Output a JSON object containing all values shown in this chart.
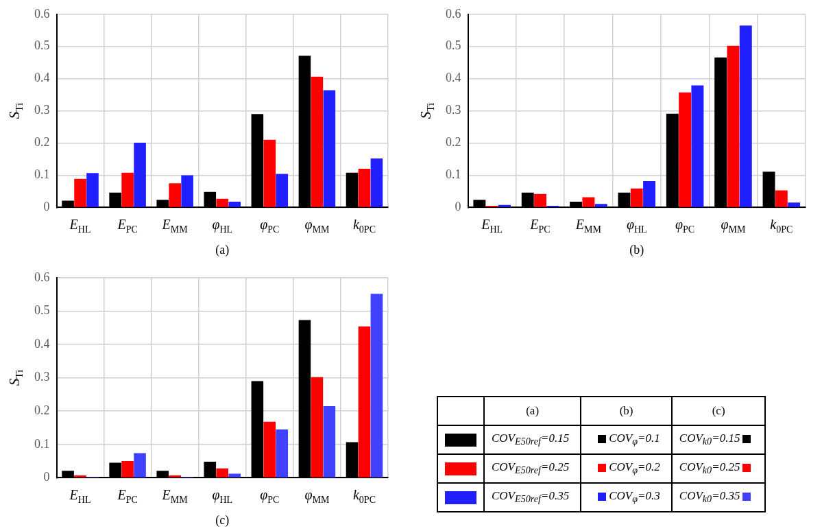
{
  "chart_data": [
    {
      "type": "bar",
      "xlabel": "(a)",
      "ylabel": "S$_{Ti}$",
      "categories": [
        "E$_{HL}$",
        "E$_{PC}$",
        "E$_{MM}$",
        "φ$_{HL}$",
        "φ$_{PC}$",
        "φ$_{MM}$",
        "k$_{0PC}$"
      ],
      "series": [
        {
          "name": "COV$_{E50ref}$=0.15",
          "color": "#000000",
          "values": [
            0.021,
            0.046,
            0.024,
            0.048,
            0.29,
            0.471,
            0.108
          ]
        },
        {
          "name": "COV$_{E50ref}$=0.25",
          "color": "#ff0000",
          "values": [
            0.089,
            0.108,
            0.075,
            0.027,
            0.21,
            0.406,
            0.12
          ]
        },
        {
          "name": "COV$_{E50ref}$=0.35",
          "color": "#1f1fff",
          "values": [
            0.107,
            0.201,
            0.1,
            0.018,
            0.104,
            0.364,
            0.152
          ]
        }
      ],
      "ylim": [
        0,
        0.6
      ],
      "yticks": [
        0,
        0.1,
        0.2,
        0.3,
        0.4,
        0.5,
        0.6
      ],
      "grid": true,
      "legend": "bottom right"
    },
    {
      "type": "bar",
      "xlabel": "(b)",
      "ylabel": "S$_{Ti}$",
      "categories": [
        "E$_{HL}$",
        "E$_{PC}$",
        "E$_{MM}$",
        "φ$_{HL}$",
        "φ$_{PC}$",
        "φ$_{MM}$",
        "k$_{0PC}$"
      ],
      "series": [
        {
          "name": "COV$_{φ}$=0.1",
          "color": "#000000",
          "values": [
            0.024,
            0.046,
            0.018,
            0.046,
            0.291,
            0.466,
            0.111
          ]
        },
        {
          "name": "COV$_{φ}$=0.2",
          "color": "#ff0000",
          "values": [
            0.005,
            0.042,
            0.032,
            0.059,
            0.357,
            0.502,
            0.053
          ]
        },
        {
          "name": "COV$_{φ}$=0.3",
          "color": "#1f1fff",
          "values": [
            0.008,
            0.005,
            0.011,
            0.082,
            0.379,
            0.565,
            0.015
          ]
        }
      ],
      "ylim": [
        0,
        0.6
      ],
      "yticks": [
        0,
        0.1,
        0.2,
        0.3,
        0.4,
        0.5,
        0.6
      ],
      "grid": true,
      "legend": "bottom"
    },
    {
      "type": "bar",
      "xlabel": "(c)",
      "ylabel": "S$_{Ti}$",
      "categories": [
        "E$_{HL}$",
        "E$_{PC}$",
        "E$_{MM}$",
        "φ$_{HL}$",
        "φ$_{PC}$",
        "φ$_{MM}$",
        "k$_{0PC}$"
      ],
      "series": [
        {
          "name": "COV$_{k0}$=0.15",
          "color": "#000000",
          "values": [
            0.021,
            0.045,
            0.021,
            0.048,
            0.29,
            0.473,
            0.107
          ]
        },
        {
          "name": "COV$_{k0}$=0.25",
          "color": "#ff0000",
          "values": [
            0.007,
            0.05,
            0.007,
            0.028,
            0.168,
            0.302,
            0.454
          ]
        },
        {
          "name": "COV$_{k0}$=0.35",
          "color": "#4040ff",
          "values": [
            0.003,
            0.074,
            0.003,
            0.012,
            0.145,
            0.215,
            0.552
          ]
        }
      ],
      "ylim": [
        0,
        0.6
      ],
      "yticks": [
        0,
        0.1,
        0.2,
        0.3,
        0.4,
        0.5,
        0.6
      ],
      "grid": true,
      "legend": "right"
    }
  ]
}
